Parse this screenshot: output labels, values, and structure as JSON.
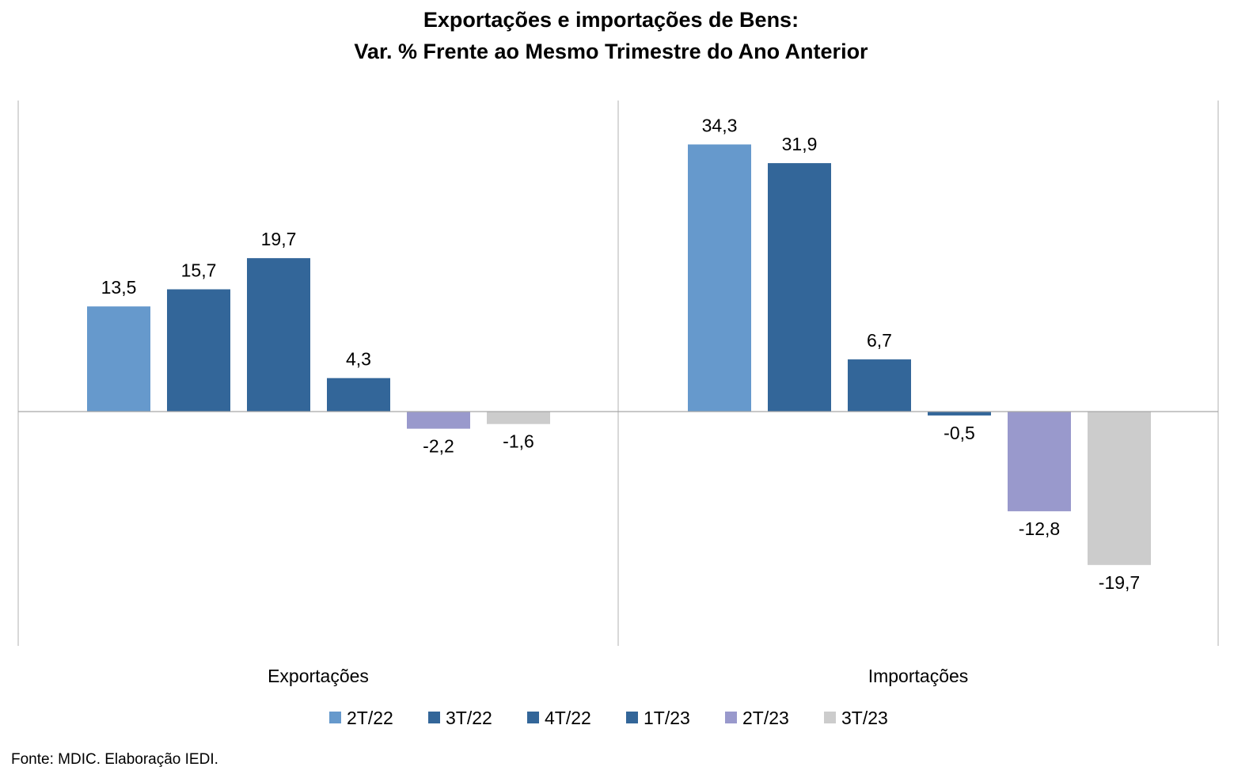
{
  "chart_data": {
    "type": "bar",
    "title": "Exportações e importações de Bens:",
    "subtitle": "Var. % Frente ao Mesmo Trimestre do Ano Anterior",
    "categories": [
      "Exportações",
      "Importações"
    ],
    "series": [
      {
        "name": "2T/22",
        "color": "#6699cc",
        "values": [
          13.5,
          34.3
        ],
        "labels": [
          "13,5",
          "34,3"
        ]
      },
      {
        "name": "3T/22",
        "color": "#336699",
        "values": [
          15.7,
          31.9
        ],
        "labels": [
          "15,7",
          "31,9"
        ]
      },
      {
        "name": "4T/22",
        "color": "#336699",
        "values": [
          19.7,
          6.7
        ],
        "labels": [
          "19,7",
          "6,7"
        ]
      },
      {
        "name": "1T/23",
        "color": "#336699",
        "values": [
          4.3,
          -0.5
        ],
        "labels": [
          "4,3",
          "-0,5"
        ]
      },
      {
        "name": "2T/23",
        "color": "#9999cc",
        "values": [
          -2.2,
          -12.8
        ],
        "labels": [
          "-2,2",
          "-12,8"
        ]
      },
      {
        "name": "3T/23",
        "color": "#cccccc",
        "values": [
          -1.6,
          -19.7
        ],
        "labels": [
          "-1,6",
          "-19,7"
        ]
      }
    ],
    "ylim": [
      -30,
      40
    ],
    "grid": false,
    "legend": "bottom",
    "source": "Fonte: MDIC. Elaboração IEDI."
  }
}
